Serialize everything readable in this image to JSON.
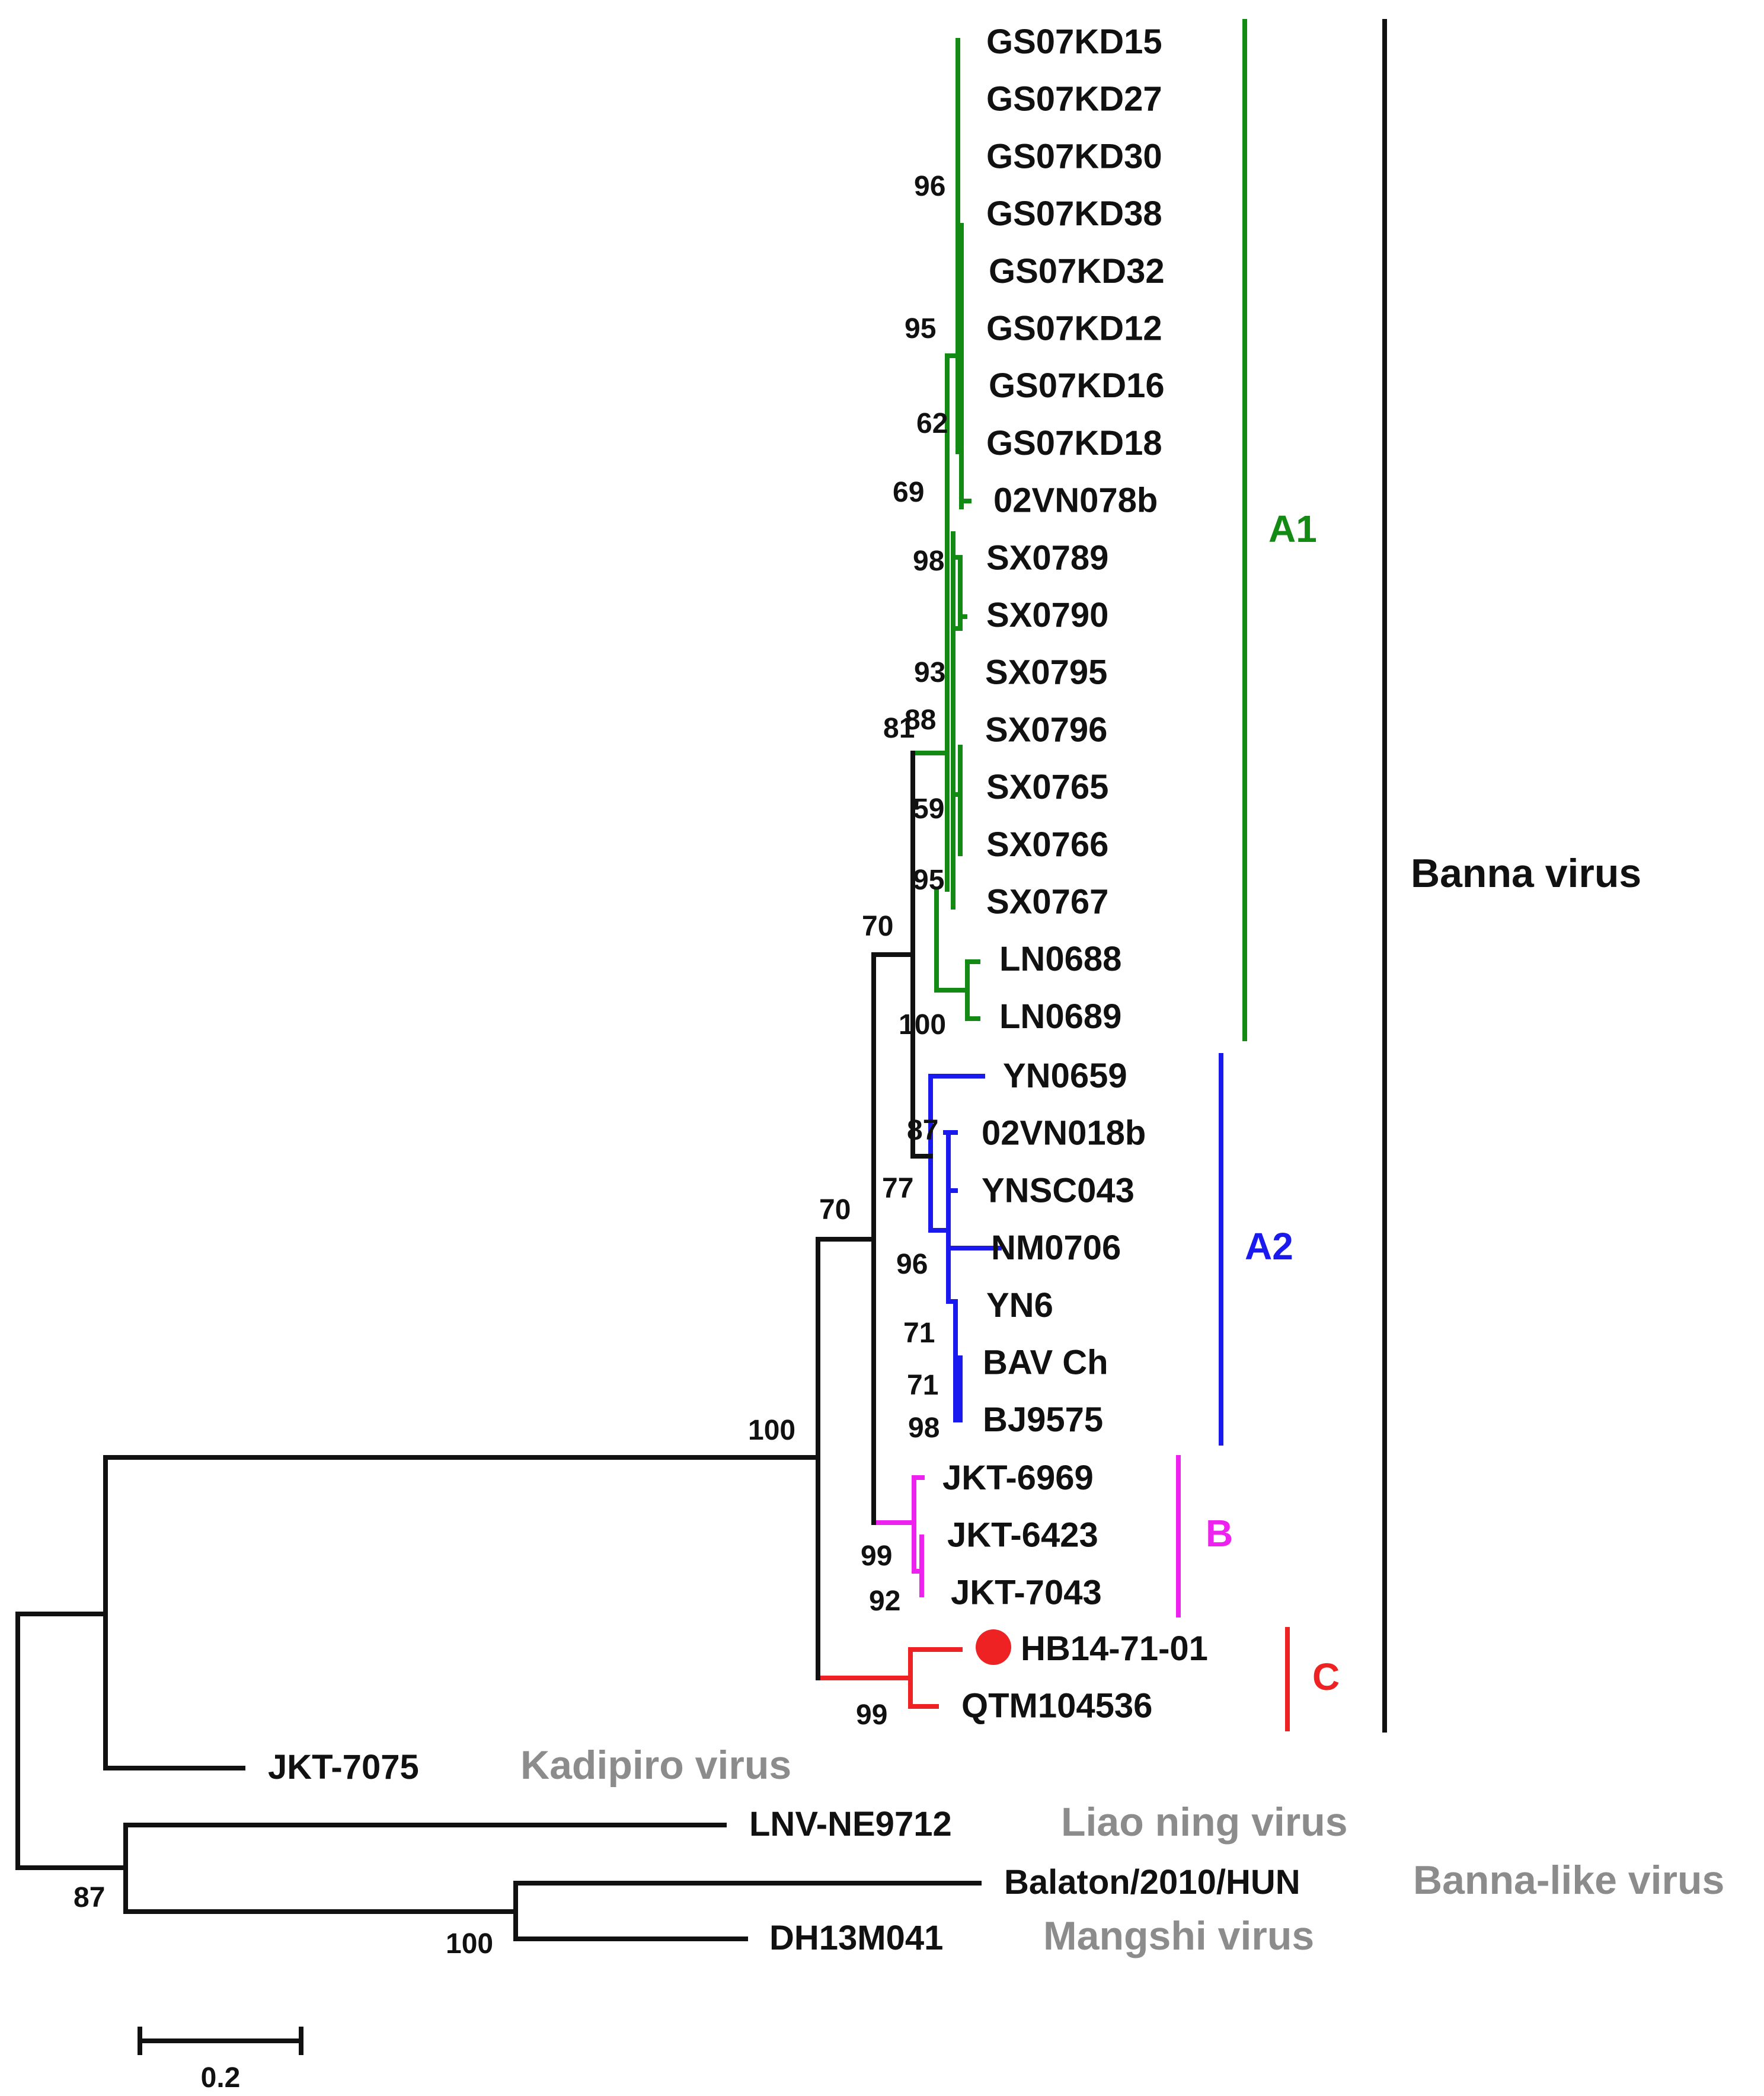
{
  "figure": {
    "type": "phylogenetic-tree",
    "scale_bar_label": "0.2"
  },
  "colors": {
    "A1": "#138a13",
    "A2": "#1a1aee",
    "B": "#ee22ee",
    "C": "#ee2222",
    "black": "#111111",
    "external": "#8c8c8c"
  },
  "taxa": {
    "a1": [
      "GS07KD15",
      "GS07KD27",
      "GS07KD30",
      "GS07KD38",
      "GS07KD32",
      "GS07KD12",
      "GS07KD16",
      "GS07KD18",
      "02VN078b",
      "SX0789",
      "SX0790",
      "SX0795",
      "SX0796",
      "SX0765",
      "SX0766",
      "SX0767",
      "LN0688",
      "LN0689"
    ],
    "a2": [
      "YN0659",
      "02VN018b",
      "YNSC043",
      "NM0706",
      "YN6",
      "BAV Ch",
      "BJ9575"
    ],
    "b": [
      "JKT-6969",
      "JKT-6423",
      "JKT-7043"
    ],
    "c": [
      "HB14-71-01",
      "QTM104536"
    ],
    "outgroups": [
      "JKT-7075",
      "LNV-NE9712",
      "Balaton/2010/HUN",
      "DH13M041"
    ]
  },
  "bootstrap": {
    "a1": [
      "96",
      "95",
      "62",
      "69",
      "98",
      "93",
      "88",
      "81",
      "59",
      "95",
      "100"
    ],
    "a2": [
      "87",
      "77",
      "96",
      "71",
      "71",
      "98"
    ],
    "b": [
      "99",
      "92"
    ],
    "c": "99",
    "backbone": [
      "70",
      "70",
      "100"
    ],
    "outgroups": [
      "87",
      "100"
    ]
  },
  "clades": {
    "A1": "A1",
    "A2": "A2",
    "B": "B",
    "C": "C"
  },
  "groups": {
    "banna": "Banna virus",
    "kadipiro": "Kadipiro virus",
    "liaoning": "Liao ning virus",
    "bannalike": "Banna-like virus",
    "mangshi": "Mangshi virus"
  },
  "highlight": {
    "taxon": "HB14-71-01",
    "marker": "filled-circle"
  }
}
